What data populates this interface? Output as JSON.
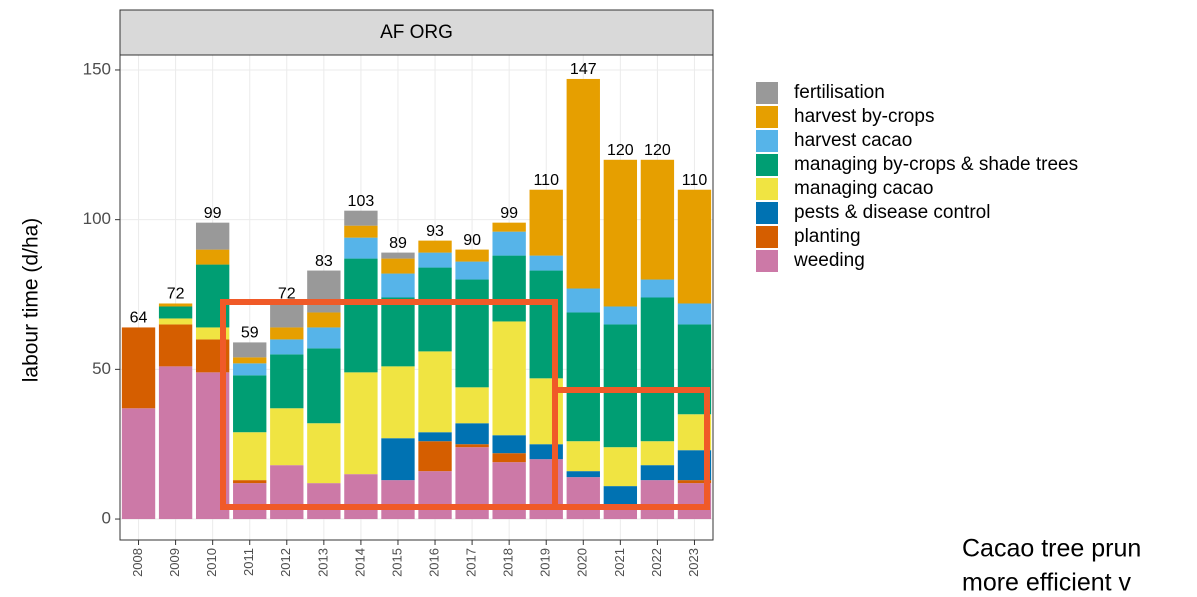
{
  "chart_data": {
    "type": "stacked_bar",
    "panel": "AF ORG",
    "y_label": "labour time (d/ha)",
    "categories": [
      "2008",
      "2009",
      "2010",
      "2011",
      "2012",
      "2013",
      "2014",
      "2015",
      "2016",
      "2017",
      "2018",
      "2019",
      "2020",
      "2021",
      "2022",
      "2023"
    ],
    "series": [
      {
        "name": "fertilisation",
        "color": "#999999",
        "values": [
          0,
          0,
          9,
          5,
          8,
          14,
          5,
          2,
          0,
          0,
          0,
          0,
          0,
          0,
          0,
          0
        ]
      },
      {
        "name": "harvest by-crops",
        "color": "#E69F00",
        "values": [
          0,
          1,
          5,
          2,
          4,
          5,
          4,
          5,
          4,
          4,
          3,
          22,
          70,
          49,
          40,
          38
        ]
      },
      {
        "name": "harvest cacao",
        "color": "#56B4E9",
        "values": [
          0,
          0,
          0,
          4,
          5,
          7,
          7,
          8,
          5,
          6,
          8,
          5,
          8,
          6,
          6,
          7
        ]
      },
      {
        "name": "managing by-crops & shade trees",
        "color": "#009E73",
        "values": [
          0,
          4,
          21,
          19,
          18,
          25,
          38,
          23,
          28,
          36,
          22,
          36,
          43,
          41,
          48,
          30
        ]
      },
      {
        "name": "managing cacao",
        "color": "#F0E442",
        "values": [
          0,
          2,
          4,
          16,
          19,
          20,
          34,
          24,
          27,
          12,
          38,
          22,
          10,
          13,
          8,
          12
        ]
      },
      {
        "name": "pests & disease control",
        "color": "#0072B2",
        "values": [
          0,
          0,
          0,
          0,
          0,
          0,
          0,
          14,
          3,
          7,
          6,
          5,
          2,
          6,
          5,
          10
        ]
      },
      {
        "name": "planting",
        "color": "#D55E00",
        "values": [
          27,
          14,
          11,
          1,
          0,
          0,
          0,
          0,
          10,
          1,
          3,
          0,
          0,
          0,
          0,
          1
        ]
      },
      {
        "name": "weeding",
        "color": "#CC79A7",
        "values": [
          37,
          51,
          49,
          12,
          18,
          12,
          15,
          13,
          16,
          24,
          19,
          20,
          14,
          5,
          13,
          12
        ]
      }
    ],
    "totals": [
      64,
      72,
      99,
      59,
      72,
      83,
      103,
      89,
      93,
      90,
      99,
      110,
      147,
      120,
      120,
      110
    ],
    "ylim": [
      -7,
      155
    ],
    "yticks": [
      0,
      50,
      100,
      150
    ],
    "grid": true,
    "annotation": [
      "Cacao tree prun",
      "more efficient v"
    ]
  }
}
